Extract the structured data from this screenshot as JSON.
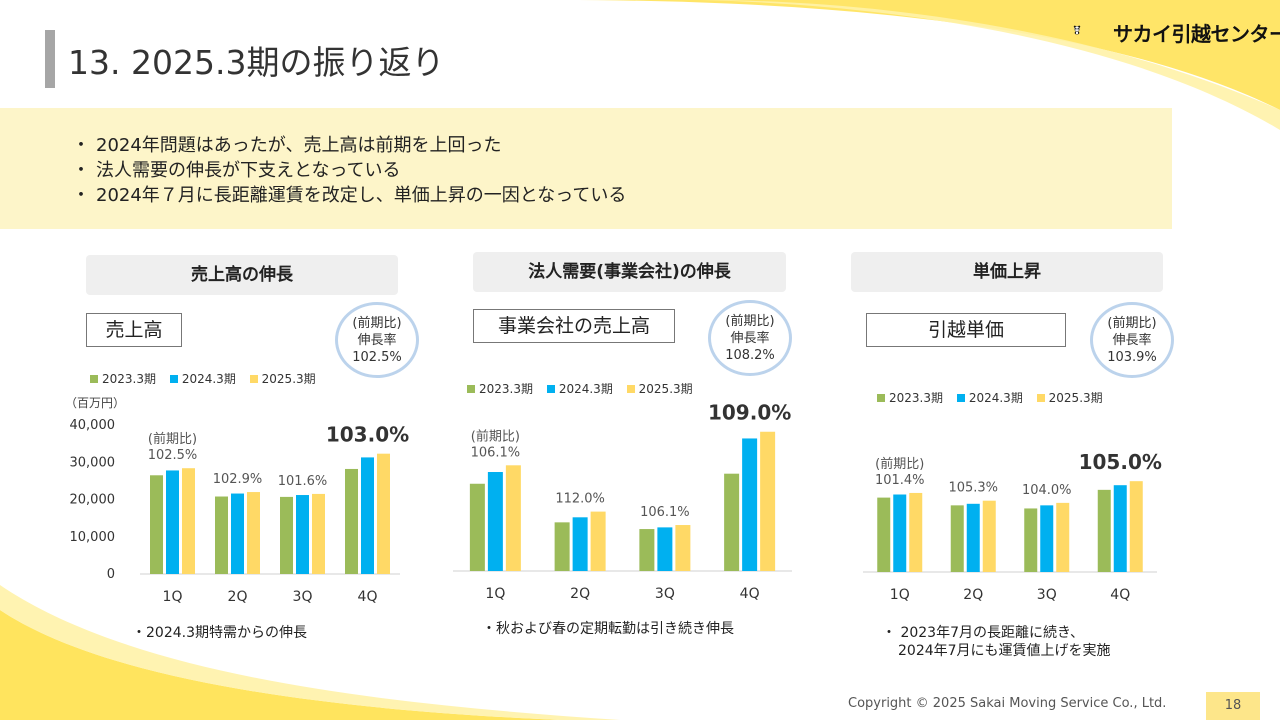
{
  "title": "13. 2025.3期の振り返り",
  "logo": {
    "text": "サカイ引越センター",
    "icon": "panda-icon"
  },
  "bullets": [
    "2024年問題はあったが、売上高は前期を上回った",
    "法人需要の伸長が下支えとなっている",
    "2024年７月に長距離運賃を改定し、単価上昇の一因となっている"
  ],
  "bullet_marker": "・",
  "colors": {
    "s2023": "#9bbb59",
    "s2024": "#00b0f0",
    "s2025": "#ffd966",
    "accent_yellow": "#ffe14d",
    "circle": "#bcd3ec"
  },
  "legend": [
    "2023.3期",
    "2024.3期",
    "2025.3期"
  ],
  "sections": [
    {
      "header": "売上高の伸長",
      "box_label": "売上高",
      "circle": {
        "line1": "(前期比)",
        "line2": "伸長率",
        "line3": "102.5%"
      },
      "note": "・2024.3期特需からの伸長"
    },
    {
      "header": "法人需要(事業会社)の伸長",
      "box_label": "事業会社の売上高",
      "circle": {
        "line1": "(前期比)",
        "line2": "伸長率",
        "line3": "108.2%"
      },
      "note": "・秋および春の定期転勤は引き続き伸長"
    },
    {
      "header": "単価上昇",
      "box_label": "引越単価",
      "circle": {
        "line1": "(前期比)",
        "line2": "伸長率",
        "line3": "103.9%"
      },
      "note_line1": "・ 2023年7月の長距離に続き、",
      "note_line2": "2024年7月にも運賃値上げを実施"
    }
  ],
  "chart_data": [
    {
      "type": "bar",
      "categories": [
        "1Q",
        "2Q",
        "3Q",
        "4Q"
      ],
      "series": [
        {
          "name": "2023.3期",
          "values": [
            26500,
            20800,
            20700,
            28200
          ]
        },
        {
          "name": "2024.3期",
          "values": [
            27800,
            21600,
            21200,
            31300
          ]
        },
        {
          "name": "2025.3期",
          "values": [
            28400,
            22000,
            21500,
            32300
          ]
        }
      ],
      "ylim": [
        0,
        40000
      ],
      "yticks": [
        "0",
        "10,000",
        "20,000",
        "30,000",
        "40,000"
      ],
      "unit_label": "（百万円）",
      "first_label_prefix": "(前期比)",
      "labels": [
        "102.5%",
        "102.9%",
        "101.6%",
        "103.0%"
      ]
    },
    {
      "type": "bar",
      "categories": [
        "1Q",
        "2Q",
        "3Q",
        "4Q"
      ],
      "series": [
        {
          "name": "2023.3期",
          "values": [
            26,
            14.5,
            12.5,
            29
          ]
        },
        {
          "name": "2024.3期",
          "values": [
            29.5,
            16,
            13,
            39.5
          ]
        },
        {
          "name": "2025.3期",
          "values": [
            31.5,
            17.7,
            13.7,
            41.5
          ]
        }
      ],
      "ylim": [
        0,
        45
      ],
      "first_label_prefix": "(前期比)",
      "labels": [
        "106.1%",
        "112.0%",
        "106.1%",
        "109.0%"
      ]
    },
    {
      "type": "bar",
      "categories": [
        "1Q",
        "2Q",
        "3Q",
        "4Q"
      ],
      "series": [
        {
          "name": "2023.3期",
          "values": [
            24,
            21.5,
            20.5,
            26.5
          ]
        },
        {
          "name": "2024.3期",
          "values": [
            25,
            22,
            21.5,
            28
          ]
        },
        {
          "name": "2025.3期",
          "values": [
            25.5,
            23,
            22.3,
            29.3
          ]
        }
      ],
      "ylim": [
        0,
        40
      ],
      "first_label_prefix": "(前期比)",
      "labels": [
        "101.4%",
        "105.3%",
        "104.0%",
        "105.0%"
      ]
    }
  ],
  "footer": "Copyright © 2025 Sakai Moving Service Co., Ltd.",
  "page_number": "18"
}
